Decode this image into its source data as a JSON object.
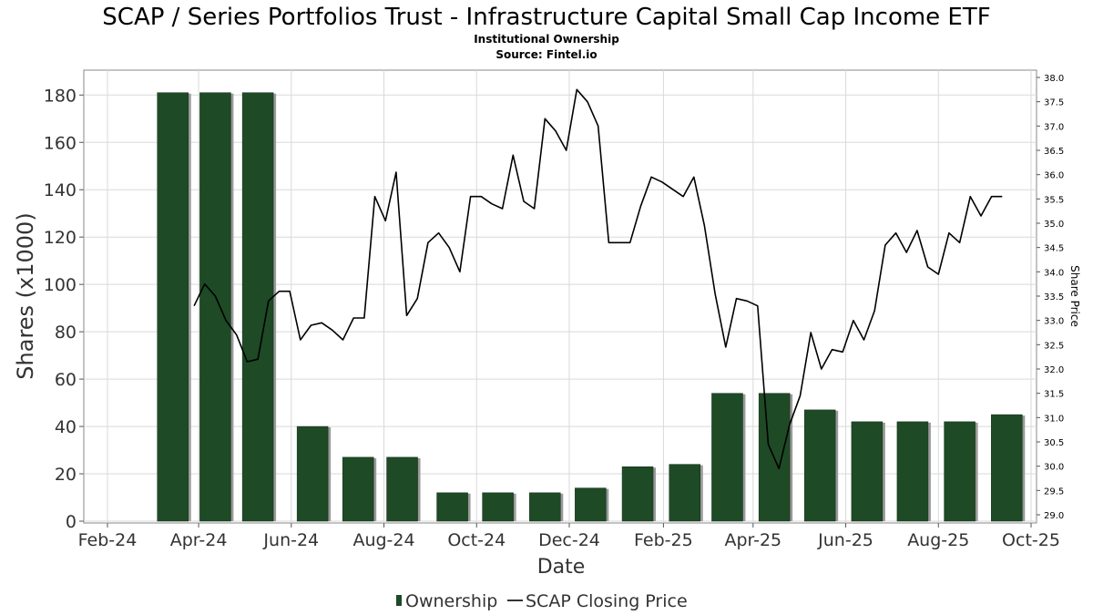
{
  "title": "SCAP / Series Portfolios Trust - Infrastructure Capital Small Cap Income ETF",
  "subtitle": "Institutional Ownership",
  "source": "Source: Fintel.io",
  "colors": {
    "bar": "#1e4a26",
    "bar_shadow": "#9a9a9a",
    "line": "#000000",
    "grid": "#d9d9d9"
  },
  "chart_data": {
    "type": "bar+line",
    "xlabel": "Date",
    "ylabel": "Shares (x1000)",
    "y2label": "Share Price",
    "x_range": [
      "2024-02-01",
      "2025-10-01"
    ],
    "ylim": [
      0,
      190
    ],
    "y2lim": [
      28.85,
      38.15
    ],
    "x_ticks": [
      {
        "date": "2024-02-01",
        "label": "Feb-24"
      },
      {
        "date": "2024-04-01",
        "label": "Apr-24"
      },
      {
        "date": "2024-06-01",
        "label": "Jun-24"
      },
      {
        "date": "2024-08-01",
        "label": "Aug-24"
      },
      {
        "date": "2024-10-01",
        "label": "Oct-24"
      },
      {
        "date": "2024-12-01",
        "label": "Dec-24"
      },
      {
        "date": "2025-02-01",
        "label": "Feb-25"
      },
      {
        "date": "2025-04-01",
        "label": "Apr-25"
      },
      {
        "date": "2025-06-01",
        "label": "Jun-25"
      },
      {
        "date": "2025-08-01",
        "label": "Aug-25"
      },
      {
        "date": "2025-10-01",
        "label": "Oct-25"
      }
    ],
    "y_ticks": [
      0,
      20,
      40,
      60,
      80,
      100,
      120,
      140,
      160,
      180
    ],
    "y2_ticks": [
      "29.0",
      "29.5",
      "30.0",
      "30.5",
      "31.0",
      "31.5",
      "32.0",
      "32.5",
      "33.0",
      "33.5",
      "34.0",
      "34.5",
      "35.0",
      "35.5",
      "36.0",
      "36.5",
      "37.0",
      "37.5",
      "38.0"
    ],
    "grid": true,
    "legend_position": "bottom",
    "series": [
      {
        "name": "Ownership",
        "kind": "bar",
        "x": [
          "2024-03-15",
          "2024-04-12",
          "2024-05-10",
          "2024-06-15",
          "2024-07-15",
          "2024-08-13",
          "2024-09-15",
          "2024-10-15",
          "2024-11-15",
          "2024-12-15",
          "2025-01-15",
          "2025-02-15",
          "2025-03-15",
          "2025-04-15",
          "2025-05-15",
          "2025-06-15",
          "2025-07-15",
          "2025-08-15",
          "2025-09-15"
        ],
        "values": [
          181,
          181,
          181,
          40,
          27,
          27,
          12,
          12,
          12,
          14,
          23,
          24,
          54,
          54,
          47,
          42,
          42,
          42,
          45
        ]
      },
      {
        "name": "SCAP Closing Price",
        "kind": "line",
        "x": [
          "2024-03-29",
          "2024-04-05",
          "2024-04-12",
          "2024-04-19",
          "2024-04-26",
          "2024-05-03",
          "2024-05-10",
          "2024-05-17",
          "2024-05-24",
          "2024-05-31",
          "2024-06-07",
          "2024-06-14",
          "2024-06-21",
          "2024-06-28",
          "2024-07-05",
          "2024-07-12",
          "2024-07-19",
          "2024-07-26",
          "2024-08-02",
          "2024-08-09",
          "2024-08-16",
          "2024-08-23",
          "2024-08-30",
          "2024-09-06",
          "2024-09-13",
          "2024-09-20",
          "2024-09-27",
          "2024-10-04",
          "2024-10-11",
          "2024-10-18",
          "2024-10-25",
          "2024-11-01",
          "2024-11-08",
          "2024-11-15",
          "2024-11-22",
          "2024-11-29",
          "2024-12-06",
          "2024-12-13",
          "2024-12-20",
          "2024-12-27",
          "2025-01-03",
          "2025-01-10",
          "2025-01-17",
          "2025-01-24",
          "2025-01-31",
          "2025-02-07",
          "2025-02-14",
          "2025-02-21",
          "2025-02-28",
          "2025-03-07",
          "2025-03-14",
          "2025-03-21",
          "2025-03-28",
          "2025-04-04",
          "2025-04-11",
          "2025-04-18",
          "2025-04-25",
          "2025-05-02",
          "2025-05-09",
          "2025-05-16",
          "2025-05-23",
          "2025-05-30",
          "2025-06-06",
          "2025-06-13",
          "2025-06-20",
          "2025-06-27",
          "2025-07-04",
          "2025-07-11",
          "2025-07-18",
          "2025-07-25",
          "2025-08-01",
          "2025-08-08",
          "2025-08-15",
          "2025-08-22",
          "2025-08-29",
          "2025-09-05",
          "2025-09-12"
        ],
        "values": [
          33.3,
          33.75,
          33.5,
          33.0,
          32.7,
          32.15,
          32.2,
          33.4,
          33.6,
          33.6,
          32.6,
          32.9,
          32.95,
          32.8,
          32.6,
          33.05,
          33.05,
          35.55,
          35.05,
          36.05,
          33.1,
          33.45,
          34.6,
          34.8,
          34.5,
          34.0,
          35.55,
          35.55,
          35.4,
          35.3,
          36.4,
          35.45,
          35.3,
          37.15,
          36.9,
          36.5,
          37.75,
          37.5,
          37.0,
          34.6,
          34.6,
          34.6,
          35.35,
          35.95,
          35.85,
          35.7,
          35.55,
          35.95,
          34.95,
          33.55,
          32.45,
          33.45,
          33.4,
          33.3,
          30.45,
          29.95,
          30.85,
          31.45,
          32.75,
          32.0,
          32.4,
          32.35,
          33.0,
          32.6,
          33.2,
          34.55,
          34.8,
          34.4,
          34.85,
          34.1,
          33.95,
          34.8,
          34.6,
          35.55,
          35.15,
          35.55,
          35.55
        ]
      }
    ]
  }
}
